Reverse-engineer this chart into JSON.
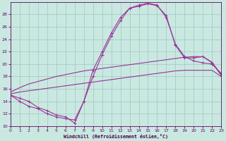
{
  "xlabel": "Windchill (Refroidissement éolien,°C)",
  "background_color": "#c8e8e0",
  "grid_color": "#a0c8c0",
  "line_color": "#993399",
  "xlim": [
    0,
    23
  ],
  "ylim": [
    10,
    30
  ],
  "xticks": [
    0,
    1,
    2,
    3,
    4,
    5,
    6,
    7,
    8,
    9,
    10,
    11,
    12,
    13,
    14,
    15,
    16,
    17,
    18,
    19,
    20,
    21,
    22,
    23
  ],
  "yticks": [
    10,
    12,
    14,
    16,
    18,
    20,
    22,
    24,
    26,
    28
  ],
  "curve1_x": [
    0,
    1,
    2,
    3,
    4,
    5,
    6,
    7,
    8,
    9,
    10,
    11,
    12,
    13,
    14,
    15,
    16,
    17,
    18,
    19,
    20,
    21,
    22,
    23
  ],
  "curve1_y": [
    15.0,
    14.5,
    14.0,
    13.0,
    12.5,
    11.8,
    11.5,
    10.5,
    14.0,
    19.0,
    22.0,
    25.0,
    27.5,
    29.0,
    29.5,
    29.8,
    29.5,
    27.5,
    23.2,
    21.2,
    20.5,
    20.2,
    20.0,
    18.5
  ],
  "curve2_x": [
    0,
    1,
    2,
    3,
    4,
    5,
    6,
    7,
    8,
    9,
    10,
    11,
    12,
    13,
    14,
    15,
    16,
    17,
    18,
    19,
    20,
    21,
    22,
    23
  ],
  "curve2_y": [
    15.0,
    14.0,
    13.2,
    12.8,
    12.0,
    11.5,
    11.2,
    11.0,
    14.0,
    18.0,
    21.5,
    24.5,
    27.0,
    29.0,
    29.3,
    29.7,
    29.4,
    27.8,
    23.0,
    21.0,
    21.0,
    21.2,
    20.2,
    18.2
  ],
  "line1_x": [
    0,
    1,
    2,
    3,
    4,
    5,
    6,
    7,
    8,
    9,
    10,
    11,
    12,
    13,
    14,
    15,
    16,
    17,
    18,
    19,
    20,
    21,
    22,
    23
  ],
  "line1_y": [
    15.5,
    16.2,
    16.8,
    17.2,
    17.6,
    18.0,
    18.3,
    18.6,
    18.9,
    19.1,
    19.3,
    19.5,
    19.7,
    19.9,
    20.1,
    20.3,
    20.5,
    20.7,
    20.9,
    21.1,
    21.2,
    21.2,
    20.3,
    18.3
  ],
  "line2_x": [
    0,
    1,
    2,
    3,
    4,
    5,
    6,
    7,
    8,
    9,
    10,
    11,
    12,
    13,
    14,
    15,
    16,
    17,
    18,
    19,
    20,
    21,
    22,
    23
  ],
  "line2_y": [
    15.2,
    15.5,
    15.7,
    15.9,
    16.1,
    16.3,
    16.5,
    16.7,
    16.9,
    17.1,
    17.3,
    17.5,
    17.7,
    17.9,
    18.1,
    18.3,
    18.5,
    18.7,
    18.9,
    19.0,
    19.0,
    19.0,
    19.0,
    18.0
  ]
}
